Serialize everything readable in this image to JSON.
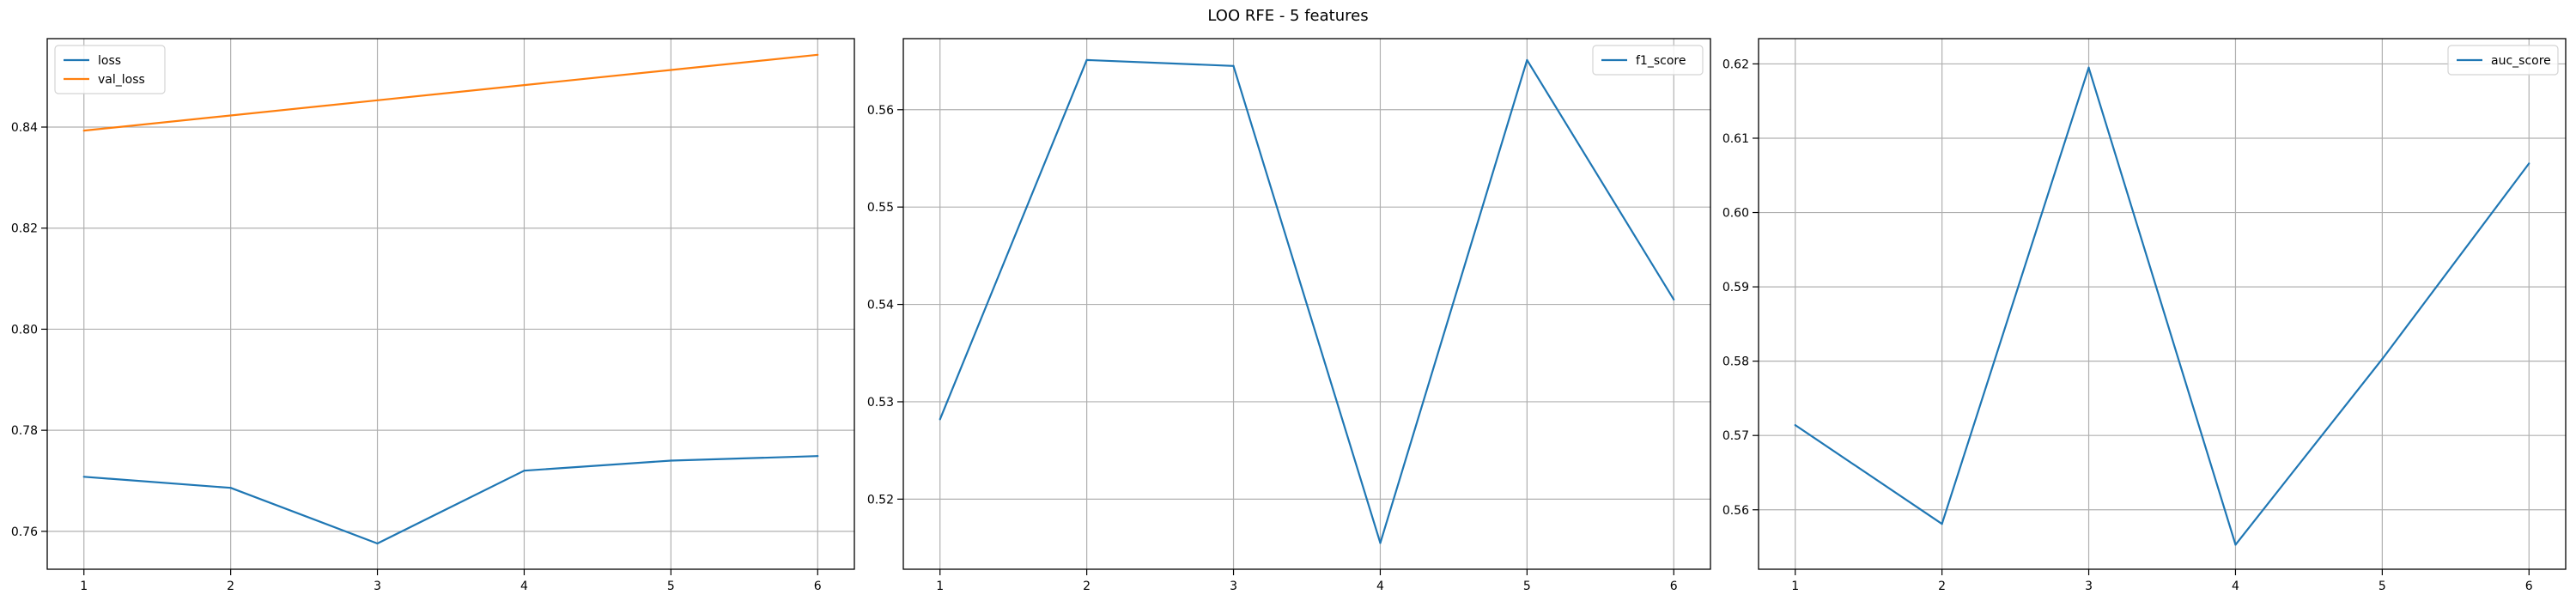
{
  "title": "LOO RFE - 5 features",
  "colors": {
    "blue": "#1f77b4",
    "orange": "#ff7f0e",
    "grid": "#b0b0b0",
    "axis": "#000000"
  },
  "chart_data": [
    {
      "type": "line",
      "x": [
        1,
        2,
        3,
        4,
        5,
        6
      ],
      "xticks": [
        1,
        2,
        3,
        4,
        5,
        6
      ],
      "xlim": [
        0.75,
        6.25
      ],
      "ylim": [
        0.7525,
        0.8575
      ],
      "yticks": [
        0.76,
        0.78,
        0.8,
        0.82,
        0.84
      ],
      "ytick_labels": [
        "0.76",
        "0.78",
        "0.80",
        "0.82",
        "0.84"
      ],
      "grid": true,
      "legend_position": "top-left",
      "series": [
        {
          "name": "loss",
          "color": "#1f77b4",
          "values": [
            0.7708,
            0.7686,
            0.7576,
            0.772,
            0.774,
            0.7749
          ]
        },
        {
          "name": "val_loss",
          "color": "#ff7f0e",
          "values": [
            0.8393,
            0.8423,
            0.8453,
            0.8483,
            0.8513,
            0.8543
          ]
        }
      ]
    },
    {
      "type": "line",
      "x": [
        1,
        2,
        3,
        4,
        5,
        6
      ],
      "xticks": [
        1,
        2,
        3,
        4,
        5,
        6
      ],
      "xlim": [
        0.75,
        6.25
      ],
      "ylim": [
        0.5128,
        0.5673
      ],
      "yticks": [
        0.52,
        0.53,
        0.54,
        0.55,
        0.56
      ],
      "ytick_labels": [
        "0.52",
        "0.53",
        "0.54",
        "0.55",
        "0.56"
      ],
      "grid": true,
      "legend_position": "top-right",
      "series": [
        {
          "name": "f1_score",
          "color": "#1f77b4",
          "values": [
            0.5282,
            0.5651,
            0.5645,
            0.5155,
            0.5651,
            0.5405
          ]
        }
      ]
    },
    {
      "type": "line",
      "x": [
        1,
        2,
        3,
        4,
        5,
        6
      ],
      "xticks": [
        1,
        2,
        3,
        4,
        5,
        6
      ],
      "xlim": [
        0.75,
        6.25
      ],
      "ylim": [
        0.552,
        0.6234
      ],
      "yticks": [
        0.56,
        0.57,
        0.58,
        0.59,
        0.6,
        0.61,
        0.62
      ],
      "ytick_labels": [
        "0.56",
        "0.57",
        "0.58",
        "0.59",
        "0.60",
        "0.61",
        "0.62"
      ],
      "grid": true,
      "legend_position": "top-right",
      "series": [
        {
          "name": "auc_score",
          "color": "#1f77b4",
          "values": [
            0.5714,
            0.5581,
            0.6195,
            0.5553,
            0.5803,
            0.6066
          ]
        }
      ]
    }
  ]
}
